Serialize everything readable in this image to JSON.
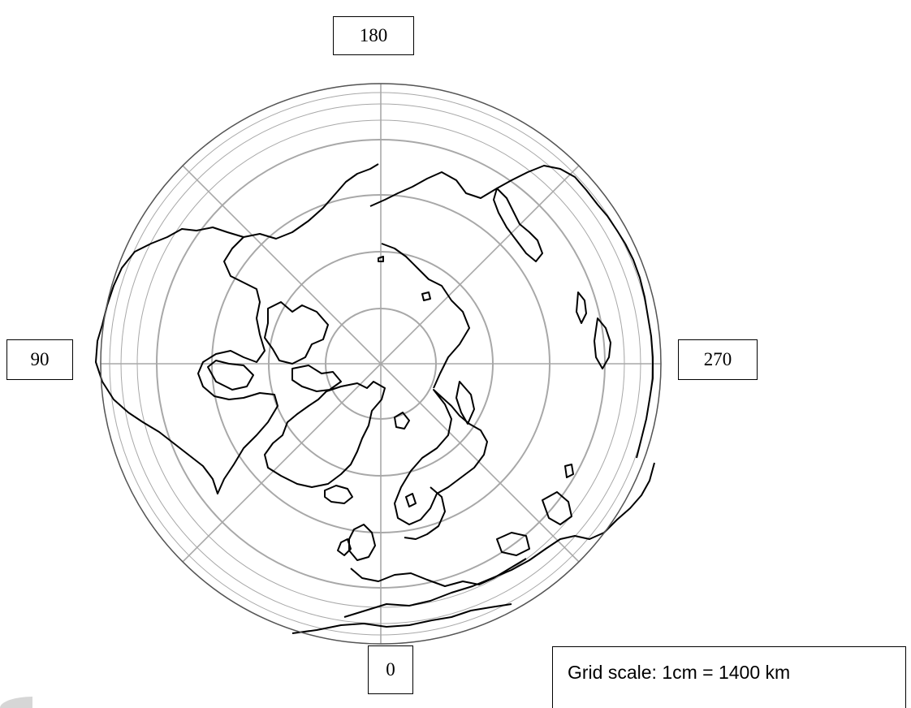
{
  "labels": {
    "top": "180",
    "left": "90",
    "right": "270",
    "bottom": "0"
  },
  "scale_text": "Grid scale:  1cm = 1400 km",
  "colors": {
    "grid": "#a8a8a8",
    "coastline": "#000000",
    "outline": "#555555"
  }
}
